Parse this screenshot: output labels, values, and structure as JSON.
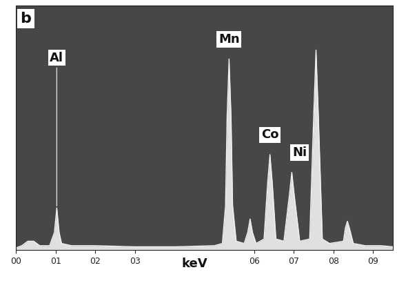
{
  "chart_data": {
    "type": "line",
    "panel_label": "b",
    "xlabel": "keV",
    "x": [
      0.0,
      0.15,
      0.3,
      0.45,
      0.6,
      0.85,
      0.97,
      1.03,
      1.09,
      1.15,
      1.4,
      2.0,
      3.0,
      4.0,
      5.0,
      5.2,
      5.28,
      5.32,
      5.37,
      5.42,
      5.46,
      5.55,
      5.75,
      5.84,
      5.9,
      5.96,
      6.05,
      6.25,
      6.34,
      6.4,
      6.46,
      6.55,
      6.75,
      6.89,
      6.95,
      7.01,
      7.15,
      7.4,
      7.5,
      7.56,
      7.62,
      7.72,
      7.9,
      8.25,
      8.3,
      8.35,
      8.4,
      8.5,
      8.8,
      9.2,
      9.5
    ],
    "values": [
      1,
      2,
      4,
      4,
      2,
      2,
      8,
      19,
      8,
      3,
      2,
      2,
      1.5,
      1.5,
      2,
      3,
      20,
      60,
      86,
      60,
      20,
      4,
      3,
      8,
      14,
      8,
      3,
      5,
      30,
      43,
      30,
      5,
      4,
      25,
      35,
      25,
      4,
      5,
      60,
      90,
      60,
      5,
      3,
      4,
      10,
      13,
      10,
      3,
      2,
      2,
      1.5
    ],
    "color": "#f2f2f2",
    "xlim": [
      0,
      9.5
    ],
    "ylim": [
      0,
      110
    ],
    "xticks": [
      {
        "value": 0,
        "label": "00"
      },
      {
        "value": 1,
        "label": "01"
      },
      {
        "value": 2,
        "label": "02"
      },
      {
        "value": 3,
        "label": "03"
      },
      {
        "value": 6,
        "label": "06"
      },
      {
        "value": 7,
        "label": "07"
      },
      {
        "value": 8,
        "label": "08"
      },
      {
        "value": 9,
        "label": "09"
      }
    ],
    "tick_labels": "x",
    "annotations": [
      {
        "text": "Al",
        "x": 1.03
      },
      {
        "text": "Mn",
        "x": 5.37
      },
      {
        "text": "Co",
        "x": 6.4
      },
      {
        "text": "Ni",
        "x": 6.95
      }
    ]
  }
}
